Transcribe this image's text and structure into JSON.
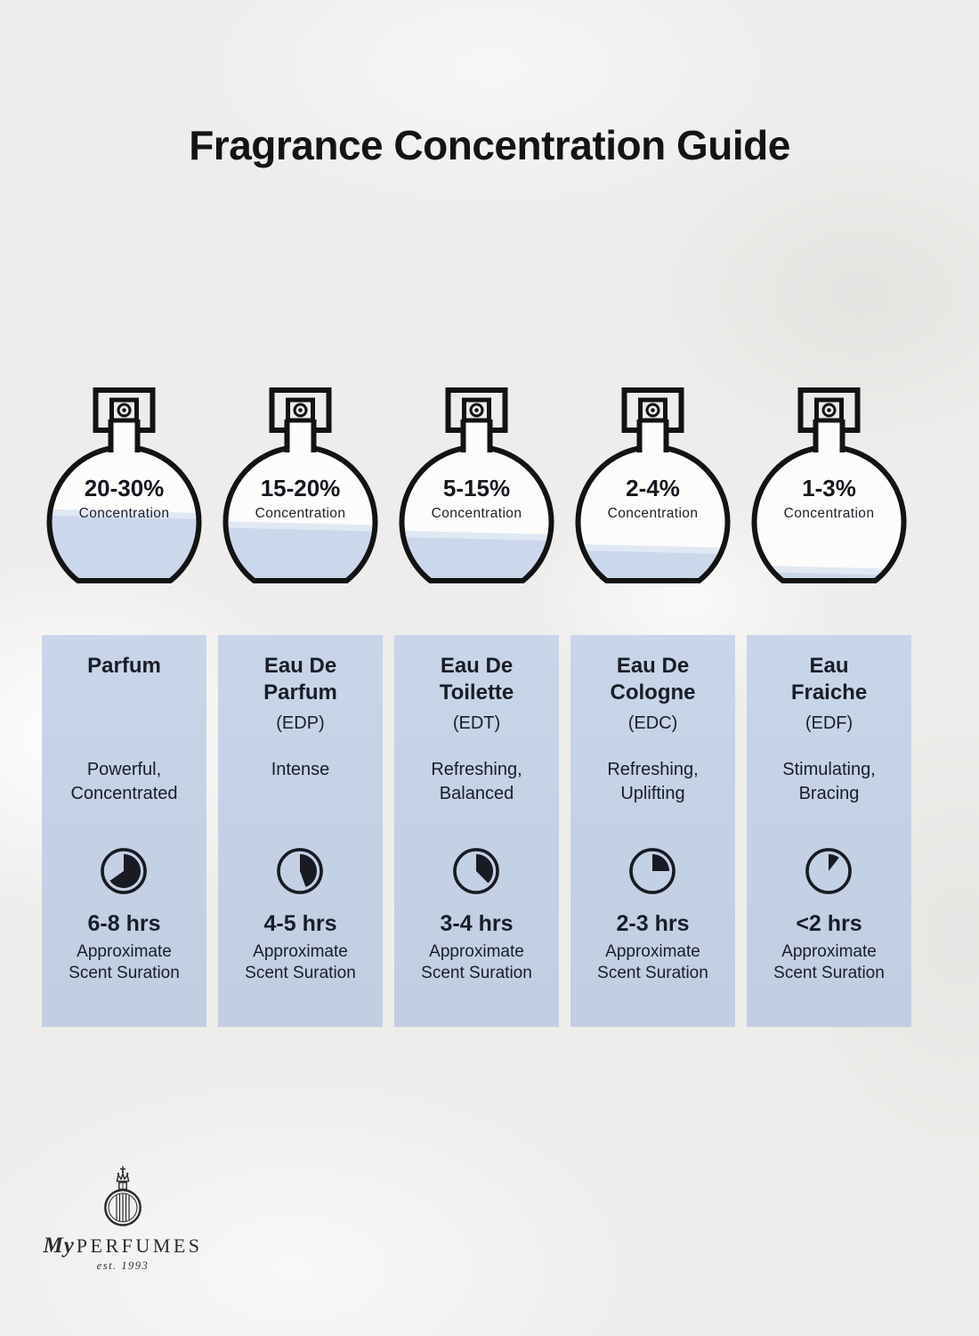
{
  "title": "Fragrance Concentration Guide",
  "bottles": [
    {
      "range": "20-30%",
      "label": "Concentration",
      "fill_percent": 52
    },
    {
      "range": "15-20%",
      "label": "Concentration",
      "fill_percent": 43
    },
    {
      "range": "5-15%",
      "label": "Concentration",
      "fill_percent": 36
    },
    {
      "range": "2-4%",
      "label": "Concentration",
      "fill_percent": 26
    },
    {
      "range": "1-3%",
      "label": "Concentration",
      "fill_percent": 10
    }
  ],
  "columns": [
    {
      "name": "Parfum",
      "abbr": "",
      "description": "Powerful,\nConcentrated",
      "duration": "6-8 hrs",
      "clock_fill_deg": 235
    },
    {
      "name": "Eau De\nParfum",
      "abbr": "(EDP)",
      "description": "Intense",
      "duration": "4-5 hrs",
      "clock_fill_deg": 160
    },
    {
      "name": "Eau De\nToilette",
      "abbr": "(EDT)",
      "description": "Refreshing,\nBalanced",
      "duration": "3-4 hrs",
      "clock_fill_deg": 135
    },
    {
      "name": "Eau De\nCologne",
      "abbr": "(EDC)",
      "description": "Refreshing,\nUplifting",
      "duration": "2-3 hrs",
      "clock_fill_deg": 90
    },
    {
      "name": "Eau\nFraiche",
      "abbr": "(EDF)",
      "description": "Stimulating,\nBracing",
      "duration": "<2 hrs",
      "clock_fill_deg": 38
    }
  ],
  "duration_caption": "Approximate\nScent Suration",
  "logo": {
    "prefix": "My",
    "name": "PERFUMES",
    "est": "est. 1993"
  },
  "colors": {
    "card_bg": "#c5d1e4",
    "liquid": "#cbd8eb",
    "ink": "#15171e",
    "title_ink": "#141414"
  }
}
